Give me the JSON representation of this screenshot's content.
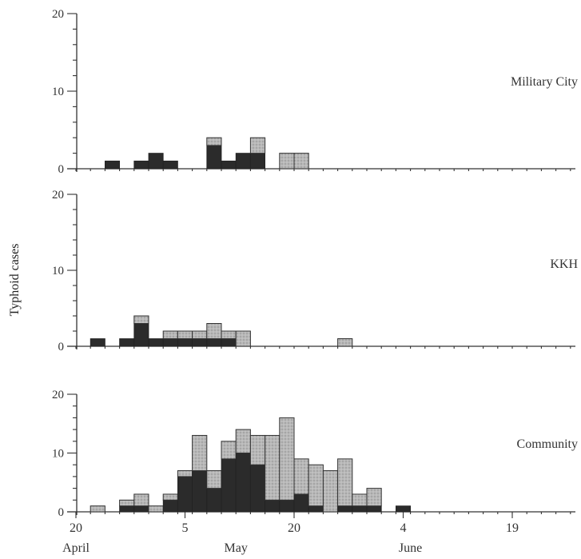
{
  "chart_data": {
    "type": "bar",
    "stacked": true,
    "bin_days": 2,
    "x_start_day": 20,
    "start_month": "April",
    "ylabel": "Typhoid cases",
    "y_ticks": [
      "0",
      "10",
      "20"
    ],
    "x_ticks": [
      {
        "day_offset": 0,
        "label": "20"
      },
      {
        "day_offset": 15,
        "label": "5"
      },
      {
        "day_offset": 30,
        "label": "20"
      },
      {
        "day_offset": 45,
        "label": "4"
      },
      {
        "day_offset": 60,
        "label": "19"
      }
    ],
    "month_labels": [
      {
        "day_offset": 0,
        "label": "April"
      },
      {
        "day_offset": 22,
        "label": "May"
      },
      {
        "day_offset": 46,
        "label": "June"
      }
    ],
    "colors": {
      "dark": "#2b2b2b",
      "shaded": "#b8b8b8",
      "axis": "#333333"
    },
    "panels": [
      {
        "label": "Military City",
        "ylim": [
          0,
          20
        ],
        "bars": [
          {
            "start": 4,
            "dark": 1,
            "shaded": 0
          },
          {
            "start": 8,
            "dark": 1,
            "shaded": 0
          },
          {
            "start": 10,
            "dark": 2,
            "shaded": 0
          },
          {
            "start": 12,
            "dark": 1,
            "shaded": 0
          },
          {
            "start": 18,
            "dark": 3,
            "shaded": 1
          },
          {
            "start": 20,
            "dark": 1,
            "shaded": 0
          },
          {
            "start": 22,
            "dark": 2,
            "shaded": 0
          },
          {
            "start": 24,
            "dark": 2,
            "shaded": 2
          },
          {
            "start": 28,
            "dark": 0,
            "shaded": 2
          },
          {
            "start": 30,
            "dark": 0,
            "shaded": 2
          }
        ]
      },
      {
        "label": "KKH",
        "ylim": [
          0,
          20
        ],
        "bars": [
          {
            "start": 2,
            "dark": 1,
            "shaded": 0
          },
          {
            "start": 6,
            "dark": 1,
            "shaded": 0
          },
          {
            "start": 8,
            "dark": 3,
            "shaded": 1
          },
          {
            "start": 10,
            "dark": 1,
            "shaded": 0
          },
          {
            "start": 12,
            "dark": 1,
            "shaded": 1
          },
          {
            "start": 14,
            "dark": 1,
            "shaded": 1
          },
          {
            "start": 16,
            "dark": 1,
            "shaded": 1
          },
          {
            "start": 18,
            "dark": 1,
            "shaded": 2
          },
          {
            "start": 20,
            "dark": 1,
            "shaded": 1
          },
          {
            "start": 22,
            "dark": 0,
            "shaded": 2
          },
          {
            "start": 36,
            "dark": 0,
            "shaded": 1
          }
        ]
      },
      {
        "label": "Community",
        "ylim": [
          0,
          20
        ],
        "bars": [
          {
            "start": 2,
            "dark": 0,
            "shaded": 1
          },
          {
            "start": 6,
            "dark": 1,
            "shaded": 1
          },
          {
            "start": 8,
            "dark": 1,
            "shaded": 2
          },
          {
            "start": 10,
            "dark": 0,
            "shaded": 1
          },
          {
            "start": 12,
            "dark": 2,
            "shaded": 1
          },
          {
            "start": 14,
            "dark": 6,
            "shaded": 1
          },
          {
            "start": 16,
            "dark": 7,
            "shaded": 6
          },
          {
            "start": 18,
            "dark": 4,
            "shaded": 3
          },
          {
            "start": 20,
            "dark": 9,
            "shaded": 3
          },
          {
            "start": 22,
            "dark": 10,
            "shaded": 4
          },
          {
            "start": 24,
            "dark": 8,
            "shaded": 5
          },
          {
            "start": 26,
            "dark": 2,
            "shaded": 11
          },
          {
            "start": 28,
            "dark": 2,
            "shaded": 14
          },
          {
            "start": 30,
            "dark": 3,
            "shaded": 6
          },
          {
            "start": 32,
            "dark": 1,
            "shaded": 7
          },
          {
            "start": 34,
            "dark": 0,
            "shaded": 7
          },
          {
            "start": 36,
            "dark": 1,
            "shaded": 8
          },
          {
            "start": 38,
            "dark": 1,
            "shaded": 2
          },
          {
            "start": 40,
            "dark": 1,
            "shaded": 3
          },
          {
            "start": 44,
            "dark": 1,
            "shaded": 0
          }
        ]
      }
    ]
  }
}
